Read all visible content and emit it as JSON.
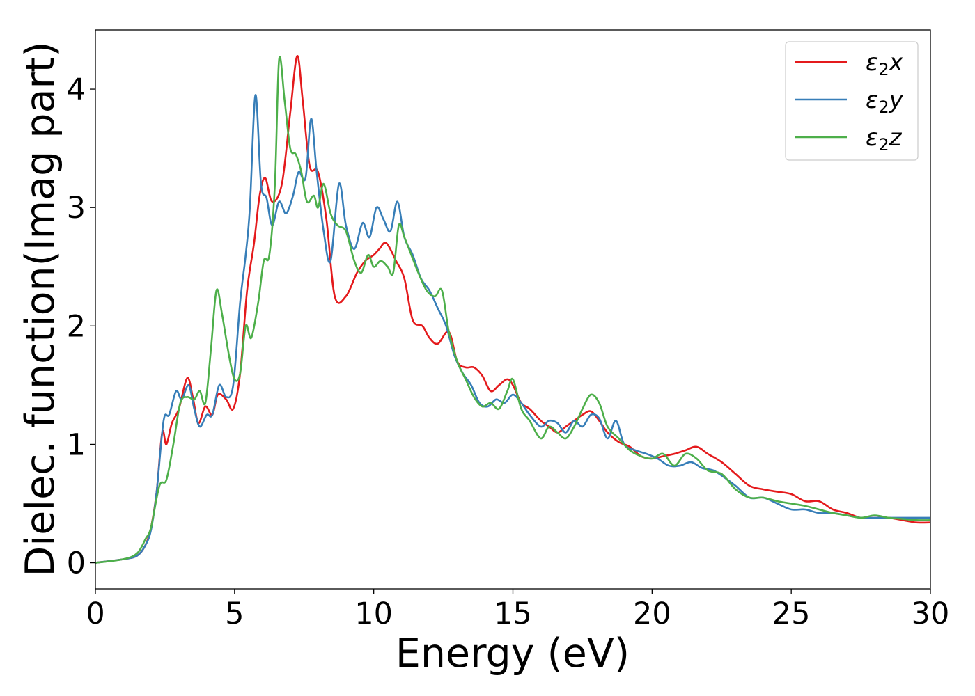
{
  "chart_data": {
    "type": "line",
    "title": "",
    "xlabel": "Energy (eV)",
    "ylabel": "Dielec. function(Imag part)",
    "xlim": [
      0,
      30
    ],
    "ylim": [
      -0.22,
      4.5
    ],
    "xticks": [
      0,
      5,
      10,
      15,
      20,
      25,
      30
    ],
    "xtick_labels": [
      "0",
      "5",
      "10",
      "15",
      "20",
      "25",
      "30"
    ],
    "yticks": [
      0,
      1,
      2,
      3,
      4
    ],
    "ytick_labels": [
      "0",
      "1",
      "2",
      "3",
      "4"
    ],
    "grid": false,
    "legend_position": "top-right",
    "series": [
      {
        "name": "ε₂x",
        "legend_base": "ε",
        "legend_sub": "2",
        "legend_tail": "x",
        "color": "#e41a1c",
        "points": [
          [
            0,
            0
          ],
          [
            1,
            0.03
          ],
          [
            1.5,
            0.06
          ],
          [
            1.8,
            0.15
          ],
          [
            2.0,
            0.3
          ],
          [
            2.2,
            0.6
          ],
          [
            2.4,
            1.1
          ],
          [
            2.55,
            1.0
          ],
          [
            2.75,
            1.18
          ],
          [
            3.0,
            1.3
          ],
          [
            3.3,
            1.56
          ],
          [
            3.5,
            1.4
          ],
          [
            3.7,
            1.18
          ],
          [
            3.95,
            1.32
          ],
          [
            4.2,
            1.25
          ],
          [
            4.4,
            1.42
          ],
          [
            4.7,
            1.38
          ],
          [
            4.95,
            1.3
          ],
          [
            5.2,
            1.6
          ],
          [
            5.45,
            2.3
          ],
          [
            5.7,
            2.7
          ],
          [
            5.9,
            3.1
          ],
          [
            6.1,
            3.25
          ],
          [
            6.35,
            3.05
          ],
          [
            6.7,
            3.2
          ],
          [
            7.0,
            3.8
          ],
          [
            7.25,
            4.28
          ],
          [
            7.45,
            3.9
          ],
          [
            7.7,
            3.35
          ],
          [
            8.0,
            3.3
          ],
          [
            8.3,
            2.9
          ],
          [
            8.6,
            2.25
          ],
          [
            9.0,
            2.25
          ],
          [
            9.4,
            2.45
          ],
          [
            9.7,
            2.55
          ],
          [
            10.0,
            2.6
          ],
          [
            10.2,
            2.65
          ],
          [
            10.45,
            2.7
          ],
          [
            10.8,
            2.55
          ],
          [
            11.1,
            2.4
          ],
          [
            11.4,
            2.05
          ],
          [
            11.75,
            2.0
          ],
          [
            12.0,
            1.9
          ],
          [
            12.3,
            1.85
          ],
          [
            12.7,
            1.95
          ],
          [
            13.0,
            1.7
          ],
          [
            13.3,
            1.65
          ],
          [
            13.6,
            1.65
          ],
          [
            13.9,
            1.58
          ],
          [
            14.2,
            1.45
          ],
          [
            14.5,
            1.5
          ],
          [
            14.8,
            1.55
          ],
          [
            15.0,
            1.5
          ],
          [
            15.3,
            1.35
          ],
          [
            15.6,
            1.3
          ],
          [
            16.0,
            1.2
          ],
          [
            16.3,
            1.15
          ],
          [
            16.6,
            1.1
          ],
          [
            16.9,
            1.15
          ],
          [
            17.2,
            1.2
          ],
          [
            17.5,
            1.25
          ],
          [
            17.8,
            1.28
          ],
          [
            18.1,
            1.2
          ],
          [
            18.4,
            1.1
          ],
          [
            18.8,
            1.02
          ],
          [
            19.2,
            0.98
          ],
          [
            19.6,
            0.9
          ],
          [
            20.0,
            0.88
          ],
          [
            20.4,
            0.9
          ],
          [
            20.8,
            0.92
          ],
          [
            21.2,
            0.95
          ],
          [
            21.6,
            0.98
          ],
          [
            22.0,
            0.92
          ],
          [
            22.5,
            0.85
          ],
          [
            23.0,
            0.75
          ],
          [
            23.5,
            0.65
          ],
          [
            24.0,
            0.62
          ],
          [
            24.5,
            0.6
          ],
          [
            25.0,
            0.58
          ],
          [
            25.5,
            0.52
          ],
          [
            26.0,
            0.52
          ],
          [
            26.5,
            0.45
          ],
          [
            27.0,
            0.42
          ],
          [
            27.5,
            0.38
          ],
          [
            28.0,
            0.38
          ],
          [
            28.5,
            0.38
          ],
          [
            29.0,
            0.36
          ],
          [
            29.5,
            0.34
          ],
          [
            30.0,
            0.34
          ]
        ]
      },
      {
        "name": "ε₂y",
        "legend_base": "ε",
        "legend_sub": "2",
        "legend_tail": "y",
        "color": "#377eb8",
        "points": [
          [
            0,
            0
          ],
          [
            1,
            0.03
          ],
          [
            1.5,
            0.06
          ],
          [
            1.8,
            0.15
          ],
          [
            2.0,
            0.28
          ],
          [
            2.2,
            0.6
          ],
          [
            2.45,
            1.2
          ],
          [
            2.65,
            1.25
          ],
          [
            2.9,
            1.45
          ],
          [
            3.1,
            1.38
          ],
          [
            3.35,
            1.5
          ],
          [
            3.55,
            1.3
          ],
          [
            3.75,
            1.15
          ],
          [
            4.0,
            1.25
          ],
          [
            4.2,
            1.25
          ],
          [
            4.45,
            1.5
          ],
          [
            4.7,
            1.4
          ],
          [
            4.95,
            1.5
          ],
          [
            5.2,
            2.2
          ],
          [
            5.4,
            2.6
          ],
          [
            5.55,
            3.0
          ],
          [
            5.75,
            3.95
          ],
          [
            5.95,
            3.2
          ],
          [
            6.15,
            3.08
          ],
          [
            6.35,
            2.85
          ],
          [
            6.6,
            3.05
          ],
          [
            6.85,
            2.95
          ],
          [
            7.1,
            3.1
          ],
          [
            7.3,
            3.3
          ],
          [
            7.55,
            3.25
          ],
          [
            7.75,
            3.75
          ],
          [
            7.95,
            3.3
          ],
          [
            8.2,
            2.8
          ],
          [
            8.45,
            2.55
          ],
          [
            8.75,
            3.2
          ],
          [
            9.0,
            2.85
          ],
          [
            9.3,
            2.65
          ],
          [
            9.6,
            2.87
          ],
          [
            9.85,
            2.75
          ],
          [
            10.1,
            3.0
          ],
          [
            10.35,
            2.9
          ],
          [
            10.6,
            2.8
          ],
          [
            10.85,
            3.05
          ],
          [
            11.1,
            2.75
          ],
          [
            11.4,
            2.6
          ],
          [
            11.7,
            2.4
          ],
          [
            12.0,
            2.3
          ],
          [
            12.3,
            2.15
          ],
          [
            12.6,
            2.0
          ],
          [
            12.9,
            1.75
          ],
          [
            13.2,
            1.6
          ],
          [
            13.5,
            1.5
          ],
          [
            13.8,
            1.35
          ],
          [
            14.1,
            1.32
          ],
          [
            14.4,
            1.38
          ],
          [
            14.7,
            1.35
          ],
          [
            15.0,
            1.42
          ],
          [
            15.3,
            1.35
          ],
          [
            15.6,
            1.25
          ],
          [
            16.0,
            1.15
          ],
          [
            16.3,
            1.2
          ],
          [
            16.6,
            1.18
          ],
          [
            16.9,
            1.1
          ],
          [
            17.2,
            1.2
          ],
          [
            17.5,
            1.15
          ],
          [
            17.8,
            1.25
          ],
          [
            18.1,
            1.22
          ],
          [
            18.4,
            1.05
          ],
          [
            18.7,
            1.2
          ],
          [
            19.0,
            1.0
          ],
          [
            19.4,
            0.95
          ],
          [
            19.8,
            0.92
          ],
          [
            20.2,
            0.88
          ],
          [
            20.6,
            0.82
          ],
          [
            21.0,
            0.82
          ],
          [
            21.4,
            0.85
          ],
          [
            21.8,
            0.8
          ],
          [
            22.2,
            0.78
          ],
          [
            22.6,
            0.72
          ],
          [
            23.0,
            0.65
          ],
          [
            23.5,
            0.55
          ],
          [
            24.0,
            0.55
          ],
          [
            24.5,
            0.5
          ],
          [
            25.0,
            0.45
          ],
          [
            25.5,
            0.45
          ],
          [
            26.0,
            0.42
          ],
          [
            26.5,
            0.42
          ],
          [
            27.0,
            0.4
          ],
          [
            27.5,
            0.38
          ],
          [
            28.0,
            0.38
          ],
          [
            28.5,
            0.38
          ],
          [
            29.0,
            0.38
          ],
          [
            29.5,
            0.38
          ],
          [
            30.0,
            0.38
          ]
        ]
      },
      {
        "name": "ε₂z",
        "legend_base": "ε",
        "legend_sub": "2",
        "legend_tail": "z",
        "color": "#4daf4a",
        "points": [
          [
            0,
            0
          ],
          [
            1,
            0.03
          ],
          [
            1.5,
            0.08
          ],
          [
            1.8,
            0.2
          ],
          [
            2.0,
            0.3
          ],
          [
            2.3,
            0.65
          ],
          [
            2.55,
            0.7
          ],
          [
            2.8,
            1.0
          ],
          [
            3.05,
            1.35
          ],
          [
            3.3,
            1.4
          ],
          [
            3.55,
            1.38
          ],
          [
            3.75,
            1.45
          ],
          [
            3.95,
            1.35
          ],
          [
            4.15,
            1.8
          ],
          [
            4.35,
            2.3
          ],
          [
            4.55,
            2.1
          ],
          [
            4.8,
            1.75
          ],
          [
            5.0,
            1.55
          ],
          [
            5.2,
            1.6
          ],
          [
            5.4,
            2.0
          ],
          [
            5.6,
            1.9
          ],
          [
            5.85,
            2.2
          ],
          [
            6.05,
            2.55
          ],
          [
            6.25,
            2.6
          ],
          [
            6.45,
            3.2
          ],
          [
            6.6,
            4.25
          ],
          [
            6.8,
            3.9
          ],
          [
            7.0,
            3.5
          ],
          [
            7.2,
            3.45
          ],
          [
            7.4,
            3.3
          ],
          [
            7.6,
            3.05
          ],
          [
            7.85,
            3.1
          ],
          [
            8.0,
            3.0
          ],
          [
            8.2,
            3.2
          ],
          [
            8.45,
            2.95
          ],
          [
            8.7,
            2.85
          ],
          [
            9.0,
            2.8
          ],
          [
            9.3,
            2.55
          ],
          [
            9.55,
            2.45
          ],
          [
            9.8,
            2.6
          ],
          [
            10.0,
            2.5
          ],
          [
            10.25,
            2.55
          ],
          [
            10.5,
            2.5
          ],
          [
            10.7,
            2.45
          ],
          [
            10.9,
            2.85
          ],
          [
            11.1,
            2.75
          ],
          [
            11.35,
            2.6
          ],
          [
            11.6,
            2.45
          ],
          [
            11.9,
            2.3
          ],
          [
            12.2,
            2.25
          ],
          [
            12.45,
            2.3
          ],
          [
            12.7,
            1.95
          ],
          [
            13.0,
            1.7
          ],
          [
            13.3,
            1.55
          ],
          [
            13.6,
            1.4
          ],
          [
            13.9,
            1.32
          ],
          [
            14.2,
            1.35
          ],
          [
            14.5,
            1.3
          ],
          [
            14.8,
            1.45
          ],
          [
            15.0,
            1.55
          ],
          [
            15.3,
            1.3
          ],
          [
            15.6,
            1.2
          ],
          [
            16.0,
            1.05
          ],
          [
            16.3,
            1.15
          ],
          [
            16.6,
            1.1
          ],
          [
            16.9,
            1.05
          ],
          [
            17.2,
            1.15
          ],
          [
            17.5,
            1.3
          ],
          [
            17.8,
            1.42
          ],
          [
            18.1,
            1.35
          ],
          [
            18.4,
            1.15
          ],
          [
            18.8,
            1.05
          ],
          [
            19.2,
            0.95
          ],
          [
            19.6,
            0.9
          ],
          [
            20.0,
            0.88
          ],
          [
            20.4,
            0.92
          ],
          [
            20.8,
            0.82
          ],
          [
            21.2,
            0.92
          ],
          [
            21.6,
            0.88
          ],
          [
            22.0,
            0.78
          ],
          [
            22.5,
            0.75
          ],
          [
            23.0,
            0.62
          ],
          [
            23.5,
            0.55
          ],
          [
            24.0,
            0.55
          ],
          [
            24.5,
            0.52
          ],
          [
            25.0,
            0.5
          ],
          [
            25.5,
            0.48
          ],
          [
            26.0,
            0.45
          ],
          [
            26.5,
            0.42
          ],
          [
            27.0,
            0.4
          ],
          [
            27.5,
            0.38
          ],
          [
            28.0,
            0.4
          ],
          [
            28.5,
            0.38
          ],
          [
            29.0,
            0.37
          ],
          [
            29.5,
            0.36
          ],
          [
            30.0,
            0.36
          ]
        ]
      }
    ]
  }
}
